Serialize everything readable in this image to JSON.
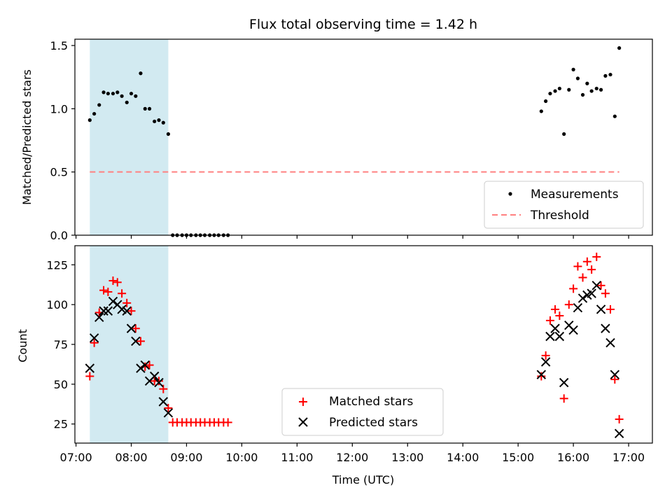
{
  "chart_data": [
    {
      "type": "scatter",
      "title": "Flux total observing time = 1.42 h",
      "xlabel": "",
      "ylabel": "Matched/Predicted stars",
      "xlim_hours": [
        6.98,
        17.43
      ],
      "ylim": [
        0,
        1.55
      ],
      "yticks": [
        0.0,
        0.5,
        1.0,
        1.5
      ],
      "ytick_labels": [
        "0.0",
        "0.5",
        "1.0",
        "1.5"
      ],
      "grid": false,
      "legend_position": "lower-right",
      "shaded_interval_hours": [
        7.25,
        8.67
      ],
      "shaded_color": "#add8e6",
      "series": [
        {
          "name": "Measurements",
          "marker": "dot",
          "color": "#000000",
          "points": [
            [
              7.25,
              0.91
            ],
            [
              7.33,
              0.96
            ],
            [
              7.42,
              1.03
            ],
            [
              7.5,
              1.13
            ],
            [
              7.58,
              1.12
            ],
            [
              7.67,
              1.12
            ],
            [
              7.75,
              1.13
            ],
            [
              7.83,
              1.1
            ],
            [
              7.92,
              1.05
            ],
            [
              8.0,
              1.12
            ],
            [
              8.08,
              1.1
            ],
            [
              8.17,
              1.28
            ],
            [
              8.25,
              1.0
            ],
            [
              8.33,
              1.0
            ],
            [
              8.42,
              0.9
            ],
            [
              8.5,
              0.91
            ],
            [
              8.58,
              0.89
            ],
            [
              8.67,
              0.8
            ],
            [
              8.75,
              0.0
            ],
            [
              8.83,
              0.0
            ],
            [
              8.92,
              0.0
            ],
            [
              9.0,
              0.0
            ],
            [
              9.08,
              0.0
            ],
            [
              9.17,
              0.0
            ],
            [
              9.25,
              0.0
            ],
            [
              9.33,
              0.0
            ],
            [
              9.42,
              0.0
            ],
            [
              9.5,
              0.0
            ],
            [
              9.58,
              0.0
            ],
            [
              9.67,
              0.0
            ],
            [
              9.75,
              0.0
            ],
            [
              15.42,
              0.98
            ],
            [
              15.5,
              1.06
            ],
            [
              15.58,
              1.12
            ],
            [
              15.67,
              1.14
            ],
            [
              15.75,
              1.16
            ],
            [
              15.83,
              0.8
            ],
            [
              15.92,
              1.15
            ],
            [
              16.0,
              1.31
            ],
            [
              16.08,
              1.24
            ],
            [
              16.17,
              1.11
            ],
            [
              16.25,
              1.2
            ],
            [
              16.33,
              1.14
            ],
            [
              16.42,
              1.16
            ],
            [
              16.5,
              1.15
            ],
            [
              16.58,
              1.26
            ],
            [
              16.67,
              1.27
            ],
            [
              16.75,
              0.94
            ],
            [
              16.83,
              1.48
            ]
          ]
        },
        {
          "name": "Threshold",
          "marker": "dashed-line",
          "color": "#ff8080",
          "y": 0.5,
          "x_range_hours": [
            7.25,
            16.83
          ]
        }
      ]
    },
    {
      "type": "scatter",
      "title": "",
      "xlabel": "Time (UTC)",
      "ylabel": "Count",
      "xlim_hours": [
        6.98,
        17.43
      ],
      "ylim": [
        13,
        137
      ],
      "yticks": [
        25,
        50,
        75,
        100,
        125
      ],
      "ytick_labels": [
        "25",
        "50",
        "75",
        "100",
        "125"
      ],
      "xticks_hours": [
        7,
        8,
        9,
        10,
        11,
        12,
        13,
        14,
        15,
        16,
        17
      ],
      "xtick_labels": [
        "07:00",
        "08:00",
        "09:00",
        "10:00",
        "11:00",
        "12:00",
        "13:00",
        "14:00",
        "15:00",
        "16:00",
        "17:00"
      ],
      "grid": false,
      "legend_position": "lower-center",
      "shaded_interval_hours": [
        7.25,
        8.67
      ],
      "shaded_color": "#add8e6",
      "series": [
        {
          "name": "Matched stars",
          "marker": "plus",
          "color": "#ff0000",
          "points": [
            [
              7.25,
              55
            ],
            [
              7.33,
              76
            ],
            [
              7.42,
              95
            ],
            [
              7.5,
              109
            ],
            [
              7.58,
              108
            ],
            [
              7.67,
              115
            ],
            [
              7.75,
              114
            ],
            [
              7.83,
              107
            ],
            [
              7.92,
              101
            ],
            [
              8.0,
              96
            ],
            [
              8.08,
              85
            ],
            [
              8.17,
              77
            ],
            [
              8.25,
              61
            ],
            [
              8.33,
              62
            ],
            [
              8.42,
              52
            ],
            [
              8.5,
              52
            ],
            [
              8.58,
              47
            ],
            [
              8.67,
              35
            ],
            [
              8.75,
              26
            ],
            [
              8.83,
              26
            ],
            [
              8.92,
              26
            ],
            [
              9.0,
              26
            ],
            [
              9.08,
              26
            ],
            [
              9.17,
              26
            ],
            [
              9.25,
              26
            ],
            [
              9.33,
              26
            ],
            [
              9.42,
              26
            ],
            [
              9.5,
              26
            ],
            [
              9.58,
              26
            ],
            [
              9.67,
              26
            ],
            [
              9.75,
              26
            ],
            [
              15.42,
              55
            ],
            [
              15.5,
              68
            ],
            [
              15.58,
              90
            ],
            [
              15.67,
              97
            ],
            [
              15.75,
              93
            ],
            [
              15.83,
              41
            ],
            [
              15.92,
              100
            ],
            [
              16.0,
              110
            ],
            [
              16.08,
              124
            ],
            [
              16.17,
              117
            ],
            [
              16.25,
              127
            ],
            [
              16.33,
              122
            ],
            [
              16.42,
              130
            ],
            [
              16.5,
              112
            ],
            [
              16.58,
              107
            ],
            [
              16.67,
              97
            ],
            [
              16.75,
              53
            ],
            [
              16.83,
              28
            ]
          ]
        },
        {
          "name": "Predicted stars",
          "marker": "x",
          "color": "#000000",
          "points": [
            [
              7.25,
              60
            ],
            [
              7.33,
              79
            ],
            [
              7.42,
              92
            ],
            [
              7.5,
              96
            ],
            [
              7.58,
              96
            ],
            [
              7.67,
              102
            ],
            [
              7.75,
              100
            ],
            [
              7.83,
              97
            ],
            [
              7.92,
              96
            ],
            [
              8.0,
              85
            ],
            [
              8.08,
              77
            ],
            [
              8.17,
              60
            ],
            [
              8.25,
              62
            ],
            [
              8.33,
              52
            ],
            [
              8.42,
              55
            ],
            [
              8.5,
              51
            ],
            [
              8.58,
              39
            ],
            [
              8.67,
              32
            ],
            [
              15.42,
              56
            ],
            [
              15.5,
              64
            ],
            [
              15.58,
              80
            ],
            [
              15.67,
              85
            ],
            [
              15.75,
              80
            ],
            [
              15.83,
              51
            ],
            [
              15.92,
              87
            ],
            [
              16.0,
              84
            ],
            [
              16.08,
              98
            ],
            [
              16.17,
              104
            ],
            [
              16.25,
              106
            ],
            [
              16.33,
              107
            ],
            [
              16.42,
              112
            ],
            [
              16.5,
              97
            ],
            [
              16.58,
              85
            ],
            [
              16.67,
              76
            ],
            [
              16.75,
              56
            ],
            [
              16.83,
              19
            ]
          ]
        }
      ]
    }
  ]
}
